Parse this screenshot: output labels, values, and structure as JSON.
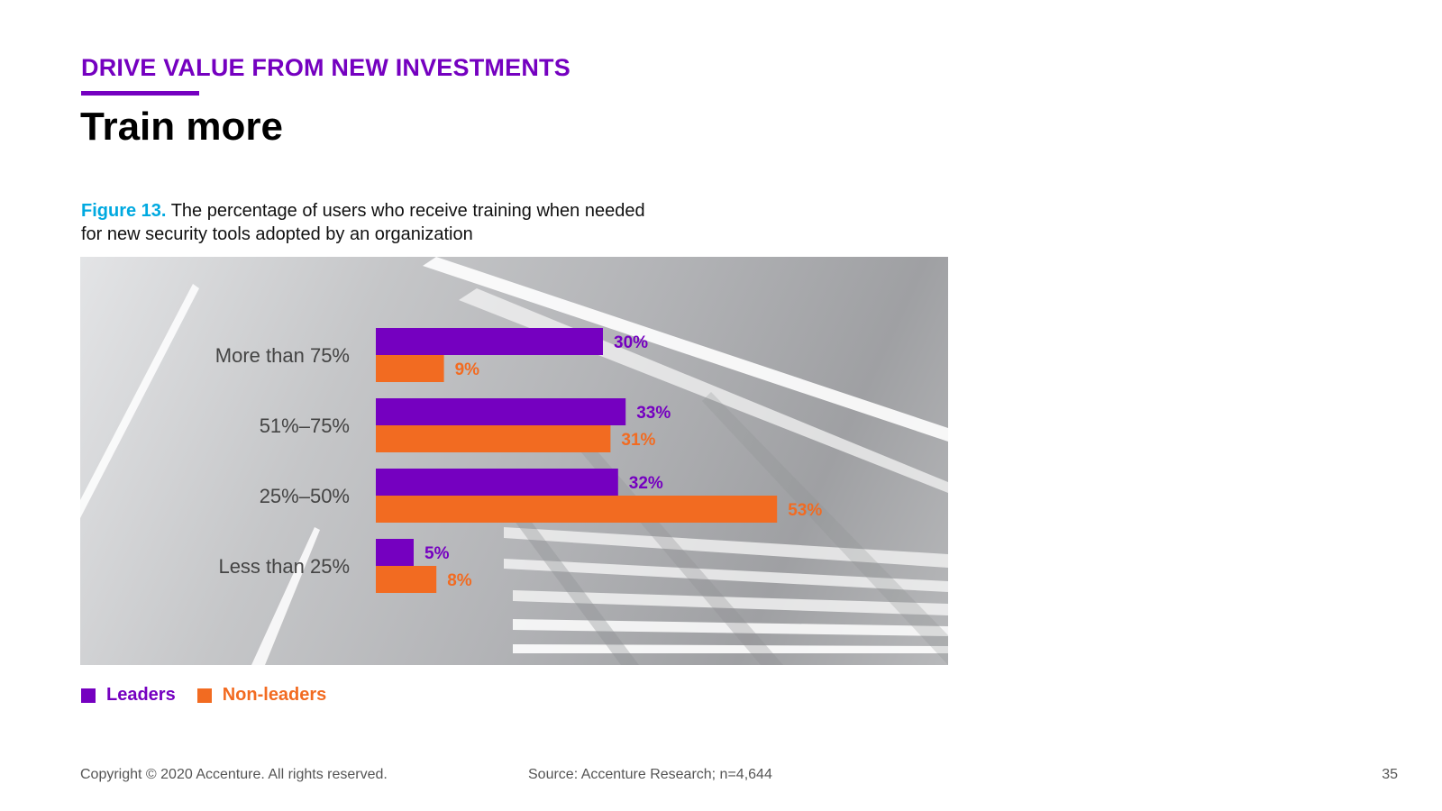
{
  "header": {
    "eyebrow": "DRIVE VALUE FROM NEW INVESTMENTS",
    "title": "Train more"
  },
  "figure": {
    "label": "Figure 13.",
    "caption_line1": "The percentage of users who receive training when needed",
    "caption_line2": "for new security tools adopted by an organization"
  },
  "chart_data": {
    "type": "bar",
    "orientation": "horizontal",
    "title": "The percentage of users who receive training when needed for new security tools adopted by an organization",
    "categories": [
      "More than 75%",
      "51%–75%",
      "25%–50%",
      "Less than 25%"
    ],
    "series": [
      {
        "name": "Leaders",
        "color": "#7500c0",
        "values": [
          30,
          33,
          32,
          5
        ],
        "labels": [
          "30%",
          "33%",
          "32%",
          "5%"
        ]
      },
      {
        "name": "Non-leaders",
        "color": "#f26b21",
        "values": [
          9,
          31,
          53,
          8
        ],
        "labels": [
          "9%",
          "31%",
          "53%",
          "8%"
        ]
      }
    ],
    "xlim": [
      0,
      100
    ],
    "value_unit": "%",
    "grid": false,
    "legend_position": "bottom-left"
  },
  "legend": {
    "leaders": "Leaders",
    "non_leaders": "Non-leaders",
    "leaders_color": "#7500c0",
    "non_leaders_color": "#f26b21"
  },
  "footer": {
    "copyright": "Copyright © 2020 Accenture. All rights reserved.",
    "source": "Source: Accenture Research; n=4,644",
    "page_number": "35"
  }
}
